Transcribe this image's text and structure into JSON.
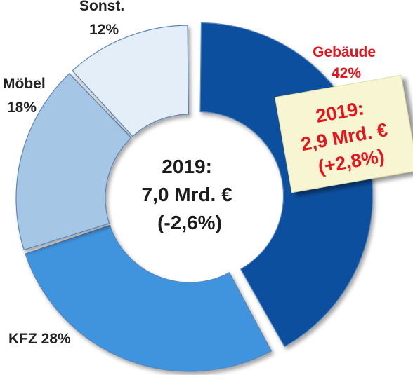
{
  "chart_data": {
    "type": "pie",
    "variant": "donut",
    "categories": [
      "Gebäude",
      "KFZ",
      "Möbel",
      "Sonst."
    ],
    "values": [
      42,
      28,
      18,
      12
    ],
    "unit": "%",
    "label_texts": [
      "Gebäude\n42%",
      "KFZ 28%",
      "Möbel\n18%",
      "Sonst.\n12%"
    ],
    "colors": [
      "#0b4f9f",
      "#3f94de",
      "#a6c6e6",
      "#e4eef9"
    ],
    "exploded": "Gebäude",
    "center_text": [
      "2019:",
      "7,0 Mrd. €",
      "(-2,6%)"
    ],
    "callout": {
      "lines": [
        "2019:",
        "2,9 Mrd. €",
        "(+2,8%)"
      ],
      "color": "#e8141c",
      "background": "#f8f6d2"
    }
  }
}
